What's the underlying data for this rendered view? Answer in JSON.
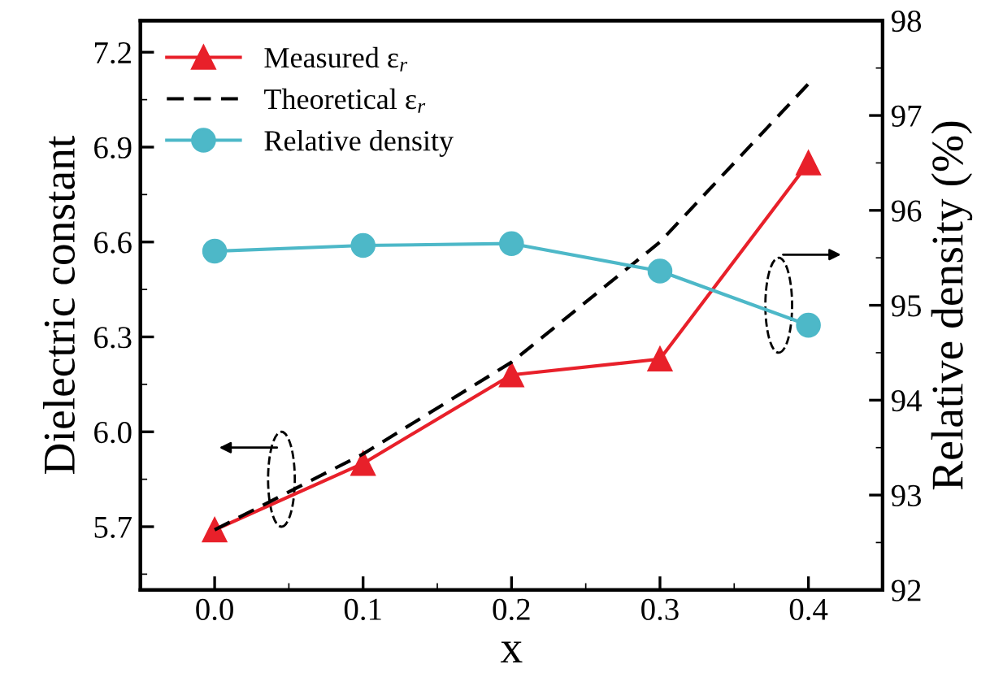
{
  "chart_data": {
    "type": "line",
    "xlabel": "x",
    "ylabel": "Dielectric constant",
    "y2label": "Relative density (%)",
    "x": [
      0.0,
      0.1,
      0.2,
      0.3,
      0.4
    ],
    "xlim": [
      -0.05,
      0.45
    ],
    "xticks": [
      {
        "value": 0,
        "label": "0.0"
      },
      0.1,
      0.2,
      0.3,
      0.4
    ],
    "ylim": [
      5.5,
      7.3
    ],
    "yticks": [
      5.7,
      {
        "value": 6,
        "label": "6.0"
      },
      6.3,
      6.6,
      6.9,
      7.2
    ],
    "y2lim": [
      92,
      98
    ],
    "y2ticks": [
      92,
      93,
      94,
      95,
      96,
      97,
      98
    ],
    "legend": "top left",
    "grid": false,
    "series": [
      {
        "name": "Measured ε$_{r}$",
        "color": "#e8202a",
        "marker": "triangle",
        "line_style": "solid",
        "values": [
          5.69,
          5.9,
          6.18,
          6.23,
          6.85
        ]
      },
      {
        "name": "Theoretical ε$_{r}$",
        "color": "#000000",
        "marker": "none",
        "line_style": "dashed",
        "values": [
          5.69,
          5.93,
          6.22,
          6.6,
          7.1
        ]
      },
      {
        "name": "Relative density",
        "color": "#4db8c8",
        "marker": "circle",
        "line_style": "solid",
        "axis": "y2",
        "values": [
          95.57,
          95.63,
          95.65,
          95.36,
          94.79
        ]
      }
    ]
  }
}
